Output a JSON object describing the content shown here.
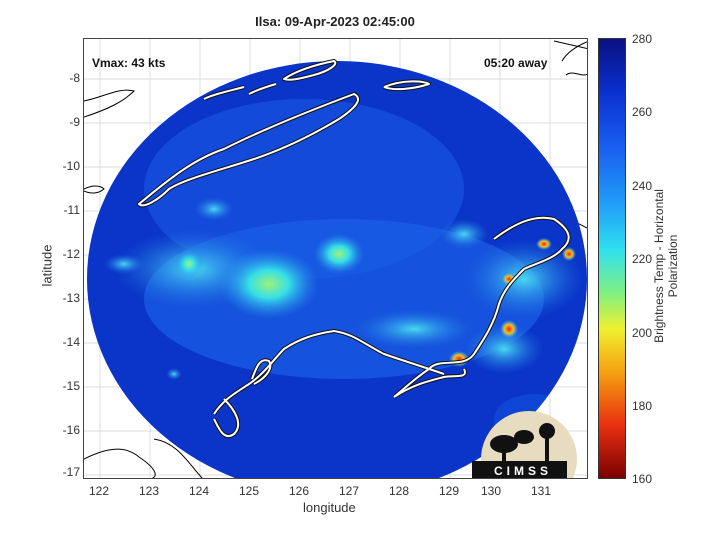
{
  "title": "Ilsa: 09-Apr-2023 02:45:00",
  "vmax_label": "Vmax: 43 kts",
  "time_away": "05:20 away",
  "xlabel": "longitude",
  "ylabel": "latitude",
  "x_ticks": [
    "122",
    "123",
    "124",
    "125",
    "126",
    "127",
    "128",
    "129",
    "130",
    "131"
  ],
  "y_ticks": [
    "-8",
    "-9",
    "-10",
    "-11",
    "-12",
    "-13",
    "-14",
    "-15",
    "-16",
    "-17"
  ],
  "colorbar": {
    "label": "Brightness Temp - Horizontal Polarization",
    "ticks": [
      "280",
      "260",
      "240",
      "220",
      "200",
      "180",
      "160"
    ],
    "range": [
      160,
      280
    ]
  },
  "logo_text": "CIMSS",
  "colors": {
    "background_field": "#0a35c8",
    "coastline": "#ffffff",
    "land_outline": "#000000"
  }
}
